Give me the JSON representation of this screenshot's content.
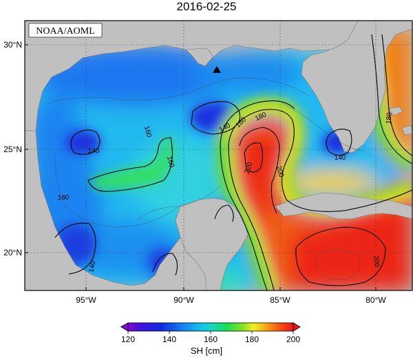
{
  "title": "2016-02-25",
  "credit": "NOAA/AOML",
  "lat_labels": [
    "30°N",
    "25°N",
    "20°N"
  ],
  "lon_labels": [
    "95°W",
    "90°W",
    "85°W",
    "80°W"
  ],
  "contour_labels": [
    "140",
    "160",
    "160",
    "140",
    "160",
    "180",
    "220",
    "200",
    "140",
    "180",
    "200",
    "160",
    "140"
  ],
  "colorbar": {
    "ticks": [
      "120",
      "140",
      "160",
      "180",
      "200"
    ],
    "label": "SH [cm]",
    "colors": [
      "#c000c8",
      "#6010e0",
      "#1030e0",
      "#1478f0",
      "#10b4f0",
      "#18d8d0",
      "#18e080",
      "#30e030",
      "#a8e020",
      "#f0f020",
      "#f8b010",
      "#f86010",
      "#e81818"
    ]
  },
  "colors": {
    "land": "#c0c0c0",
    "ocean_low": "#2a3fe0",
    "ocean_mid": "#24b4f0",
    "ocean_high": "#ee2a12"
  }
}
